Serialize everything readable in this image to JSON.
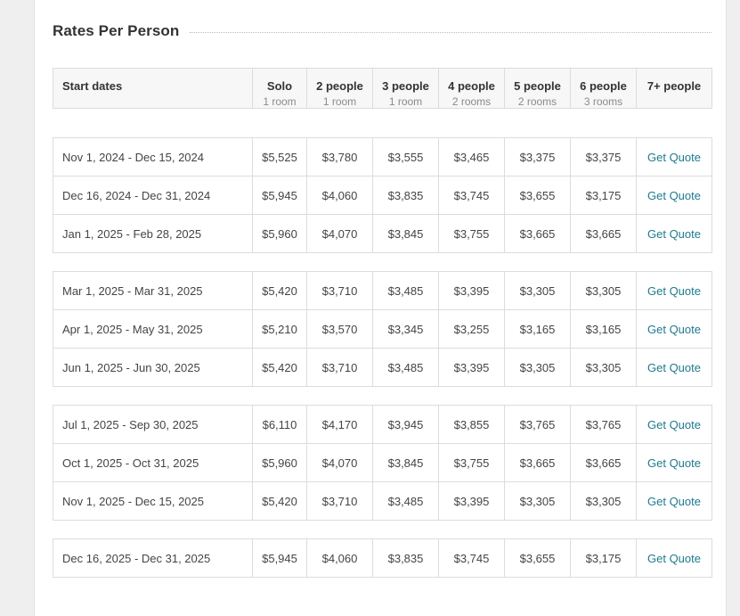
{
  "section": {
    "title": "Rates Per Person"
  },
  "columns": [
    {
      "label": "Start dates",
      "sub": ""
    },
    {
      "label": "Solo",
      "sub": "1 room"
    },
    {
      "label": "2 people",
      "sub": "1 room"
    },
    {
      "label": "3 people",
      "sub": "1 room"
    },
    {
      "label": "4 people",
      "sub": "2 rooms"
    },
    {
      "label": "5 people",
      "sub": "2 rooms"
    },
    {
      "label": "6 people",
      "sub": "3 rooms"
    },
    {
      "label": "7+ people",
      "sub": ""
    }
  ],
  "quote_label": "Get Quote",
  "groups": [
    {
      "rows": [
        {
          "dates": "Nov 1, 2024 - Dec 15, 2024",
          "prices": [
            "$5,525",
            "$3,780",
            "$3,555",
            "$3,465",
            "$3,375",
            "$3,375"
          ]
        },
        {
          "dates": "Dec 16, 2024 - Dec 31, 2024",
          "prices": [
            "$5,945",
            "$4,060",
            "$3,835",
            "$3,745",
            "$3,655",
            "$3,175"
          ]
        },
        {
          "dates": "Jan 1, 2025 - Feb 28, 2025",
          "prices": [
            "$5,960",
            "$4,070",
            "$3,845",
            "$3,755",
            "$3,665",
            "$3,665"
          ]
        }
      ]
    },
    {
      "rows": [
        {
          "dates": "Mar 1, 2025 - Mar 31, 2025",
          "prices": [
            "$5,420",
            "$3,710",
            "$3,485",
            "$3,395",
            "$3,305",
            "$3,305"
          ]
        },
        {
          "dates": "Apr 1, 2025 - May 31, 2025",
          "prices": [
            "$5,210",
            "$3,570",
            "$3,345",
            "$3,255",
            "$3,165",
            "$3,165"
          ]
        },
        {
          "dates": "Jun 1, 2025 - Jun 30, 2025",
          "prices": [
            "$5,420",
            "$3,710",
            "$3,485",
            "$3,395",
            "$3,305",
            "$3,305"
          ]
        }
      ]
    },
    {
      "rows": [
        {
          "dates": "Jul 1, 2025 - Sep 30, 2025",
          "prices": [
            "$6,110",
            "$4,170",
            "$3,945",
            "$3,855",
            "$3,765",
            "$3,765"
          ]
        },
        {
          "dates": "Oct 1, 2025 - Oct 31, 2025",
          "prices": [
            "$5,960",
            "$4,070",
            "$3,845",
            "$3,755",
            "$3,665",
            "$3,665"
          ]
        },
        {
          "dates": "Nov 1, 2025 - Dec 15, 2025",
          "prices": [
            "$5,420",
            "$3,710",
            "$3,485",
            "$3,395",
            "$3,305",
            "$3,305"
          ]
        }
      ]
    },
    {
      "rows": [
        {
          "dates": "Dec 16, 2025 - Dec 31, 2025",
          "prices": [
            "$5,945",
            "$4,060",
            "$3,835",
            "$3,745",
            "$3,655",
            "$3,175"
          ]
        }
      ]
    }
  ],
  "colors": {
    "link": "#1d7a8c",
    "header_bg": "#f7f7f7",
    "border": "#dcdcdc"
  }
}
